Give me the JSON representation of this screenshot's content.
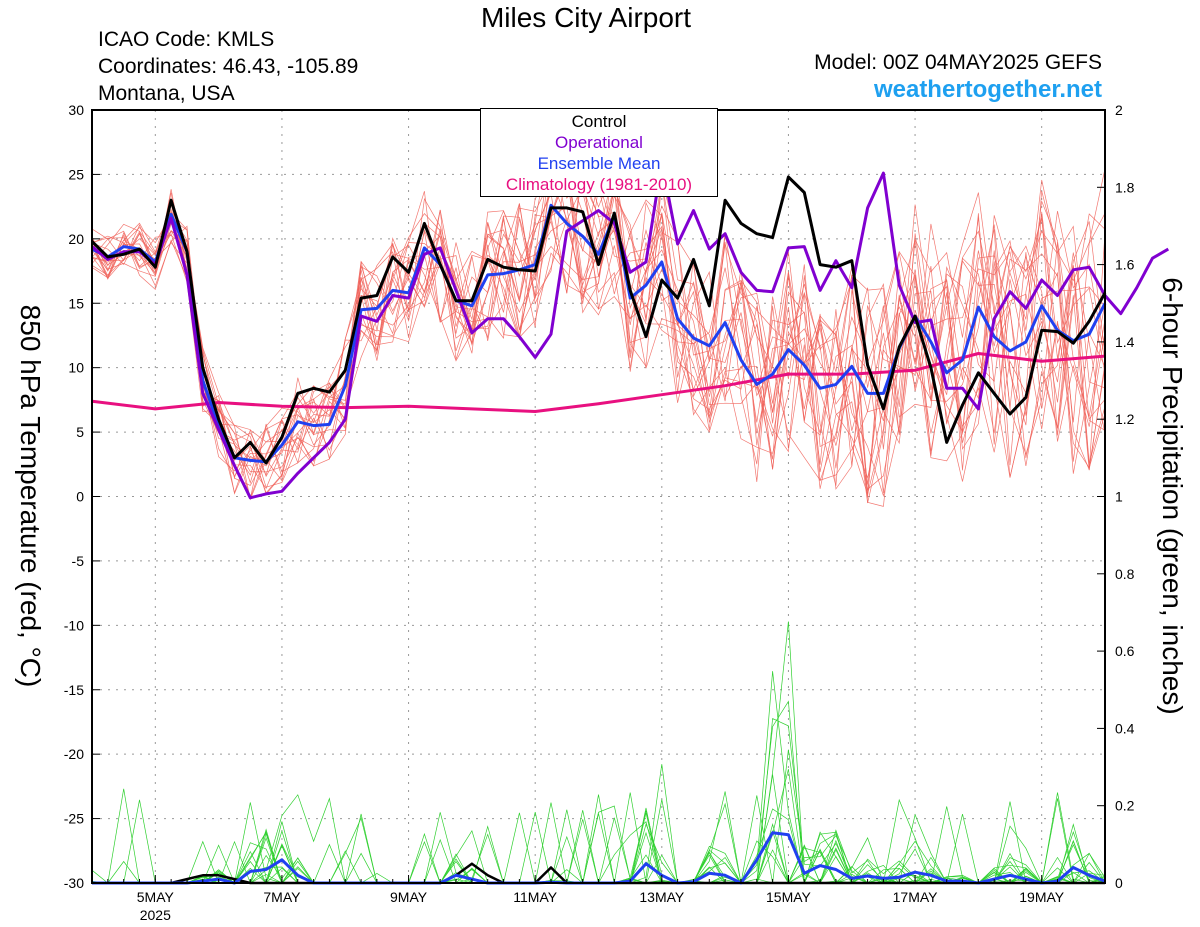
{
  "header": {
    "title": "Miles City Airport",
    "icao": "ICAO Code: KMLS",
    "coordinates": "Coordinates: 46.43, -105.89",
    "region": "Montana, USA",
    "model": "Model: 00Z 04MAY2025 GEFS",
    "site": "weathertogether.net"
  },
  "colors": {
    "members": "#f06058",
    "precip": "#30d030",
    "control": "#000000",
    "operational": "#8000d0",
    "mean": "#2040f0",
    "climatology": "#e81080",
    "site": "#1ea0f0"
  },
  "legend": [
    {
      "label": "Control",
      "color": "#000000"
    },
    {
      "label": "Operational",
      "color": "#8000d0"
    },
    {
      "label": "Ensemble Mean",
      "color": "#2040f0"
    },
    {
      "label": "Climatology (1981-2010)",
      "color": "#e81080"
    }
  ],
  "chart_data": {
    "type": "line",
    "ylabel_left": "850 hPa Temperature (red, °C)",
    "ylabel_right": "6-hour Precipitation (green, inches)",
    "ylim_left": [
      -30,
      30
    ],
    "ylim_right": [
      0,
      2
    ],
    "yticks_left": [
      "30",
      "25",
      "20",
      "15",
      "10",
      "5",
      "0",
      "-5",
      "-10",
      "-15",
      "-20",
      "-25",
      "-30"
    ],
    "yticks_right": [
      "2",
      "1.8",
      "1.6",
      "1.4",
      "1.2",
      "1",
      "0.8",
      "0.6",
      "0.4",
      "0.2",
      "0"
    ],
    "xlim_days": [
      4.0,
      20.0
    ],
    "xticks": [
      {
        "day": 5,
        "label": "5MAY",
        "sub": "2025"
      },
      {
        "day": 7,
        "label": "7MAY",
        "sub": ""
      },
      {
        "day": 9,
        "label": "9MAY",
        "sub": ""
      },
      {
        "day": 11,
        "label": "11MAY",
        "sub": ""
      },
      {
        "day": 13,
        "label": "13MAY",
        "sub": ""
      },
      {
        "day": 15,
        "label": "15MAY",
        "sub": ""
      },
      {
        "day": 17,
        "label": "17MAY",
        "sub": ""
      },
      {
        "day": 19,
        "label": "19MAY",
        "sub": ""
      }
    ],
    "time_step_days": 0.25,
    "grid": true,
    "series": [
      {
        "name": "Control",
        "axis": "left",
        "values": [
          19.8,
          18.6,
          18.8,
          19.2,
          17.8,
          23.0,
          19.0,
          10.0,
          6.0,
          3.0,
          4.2,
          2.6,
          4.6,
          8.0,
          8.4,
          8.1,
          9.8,
          15.4,
          15.6,
          18.6,
          17.4,
          21.2,
          18.0,
          15.2,
          15.2,
          18.4,
          17.8,
          17.6,
          17.5,
          22.4,
          22.4,
          22.1,
          18.0,
          22.0,
          16.0,
          12.4,
          16.8,
          15.4,
          18.4,
          14.8,
          23.0,
          21.2,
          20.4,
          20.1,
          24.8,
          23.6,
          18.0,
          17.8,
          18.3,
          10.2,
          6.8,
          11.6,
          14.0,
          10.0,
          4.2,
          7.1,
          9.6,
          8.0,
          6.4,
          7.7,
          12.9,
          12.8,
          11.9,
          13.6,
          15.8
        ]
      },
      {
        "name": "Operational",
        "axis": "left",
        "values": [
          19.4,
          18.4,
          19.0,
          19.0,
          18.0,
          21.6,
          17.2,
          8.0,
          5.2,
          2.4,
          -0.1,
          0.2,
          0.4,
          1.8,
          3.0,
          4.2,
          6.0,
          14.0,
          13.6,
          15.6,
          15.4,
          18.8,
          19.3,
          16.0,
          12.7,
          13.8,
          13.8,
          12.4,
          10.8,
          12.6,
          20.6,
          21.4,
          22.2,
          21.2,
          17.4,
          18.2,
          26.0,
          19.6,
          22.2,
          19.2,
          20.4,
          17.4,
          16.0,
          15.9,
          19.3,
          19.4,
          16.0,
          18.3,
          16.2,
          22.4,
          25.1,
          16.4,
          13.5,
          13.7,
          8.4,
          8.4,
          6.8,
          13.8,
          15.9,
          14.6,
          16.8,
          15.6,
          17.6,
          17.8,
          15.6,
          14.2,
          16.2,
          18.5,
          19.2
        ]
      },
      {
        "name": "Ensemble Mean",
        "axis": "left",
        "values": [
          19.2,
          18.6,
          19.4,
          19.2,
          18.2,
          21.9,
          19.0,
          9.0,
          5.5,
          3.0,
          2.8,
          2.7,
          4.0,
          5.8,
          5.5,
          5.6,
          8.6,
          14.5,
          14.6,
          16.0,
          15.8,
          19.3,
          18.0,
          15.2,
          14.8,
          17.2,
          17.3,
          17.6,
          18.0,
          22.6,
          21.2,
          20.2,
          18.8,
          21.8,
          15.4,
          16.4,
          18.2,
          13.8,
          12.3,
          11.7,
          13.5,
          10.6,
          8.7,
          9.5,
          11.4,
          10.2,
          8.4,
          8.7,
          10.1,
          8.0,
          8.0,
          11.5,
          14.0,
          12.0,
          9.6,
          10.6,
          14.7,
          12.4,
          11.3,
          12.0,
          14.8,
          12.9,
          12.1,
          12.6,
          15.0
        ]
      },
      {
        "name": "Climatology (1981-2010)",
        "axis": "left",
        "x": [
          4.0,
          5.0,
          6.0,
          7.0,
          8.0,
          9.0,
          10.0,
          11.0,
          12.0,
          13.0,
          14.0,
          15.0,
          16.0,
          17.0,
          18.0,
          19.0,
          20.0
        ],
        "values": [
          7.4,
          6.8,
          7.3,
          7.0,
          6.9,
          7.0,
          6.8,
          6.6,
          7.2,
          7.9,
          8.6,
          9.5,
          9.5,
          9.8,
          11.1,
          10.5,
          10.9
        ]
      },
      {
        "name": "Control precip",
        "axis": "right",
        "values": [
          0,
          0,
          0,
          0,
          0,
          0,
          0.01,
          0.02,
          0.02,
          0.01,
          0,
          0,
          0,
          0,
          0,
          0,
          0,
          0,
          0,
          0,
          0,
          0,
          0,
          0.02,
          0.05,
          0.02,
          0,
          0,
          0,
          0.04,
          0,
          0,
          0,
          0,
          0,
          0,
          0,
          0,
          0,
          0,
          0,
          0,
          0,
          0,
          0,
          0,
          0,
          0,
          0,
          0,
          0,
          0,
          0,
          0,
          0,
          0,
          0,
          0,
          0,
          0,
          0,
          0,
          0,
          0,
          0
        ]
      },
      {
        "name": "Ensemble Mean precip",
        "axis": "right",
        "values": [
          0,
          0,
          0,
          0,
          0,
          0,
          0,
          0.005,
          0.01,
          0,
          0.03,
          0.035,
          0.06,
          0.02,
          0,
          0,
          0,
          0,
          0,
          0,
          0,
          0,
          0,
          0.02,
          0.01,
          0,
          0,
          0,
          0,
          0.002,
          0,
          0,
          0,
          0,
          0.005,
          0.05,
          0.02,
          0,
          0.003,
          0.025,
          0.02,
          0,
          0.06,
          0.13,
          0.125,
          0.025,
          0.045,
          0.035,
          0.012,
          0.018,
          0.012,
          0.015,
          0.028,
          0.02,
          0.005,
          0.005,
          0,
          0.01,
          0.02,
          0.01,
          0,
          0.005,
          0.04,
          0.02,
          0.005
        ]
      }
    ]
  }
}
